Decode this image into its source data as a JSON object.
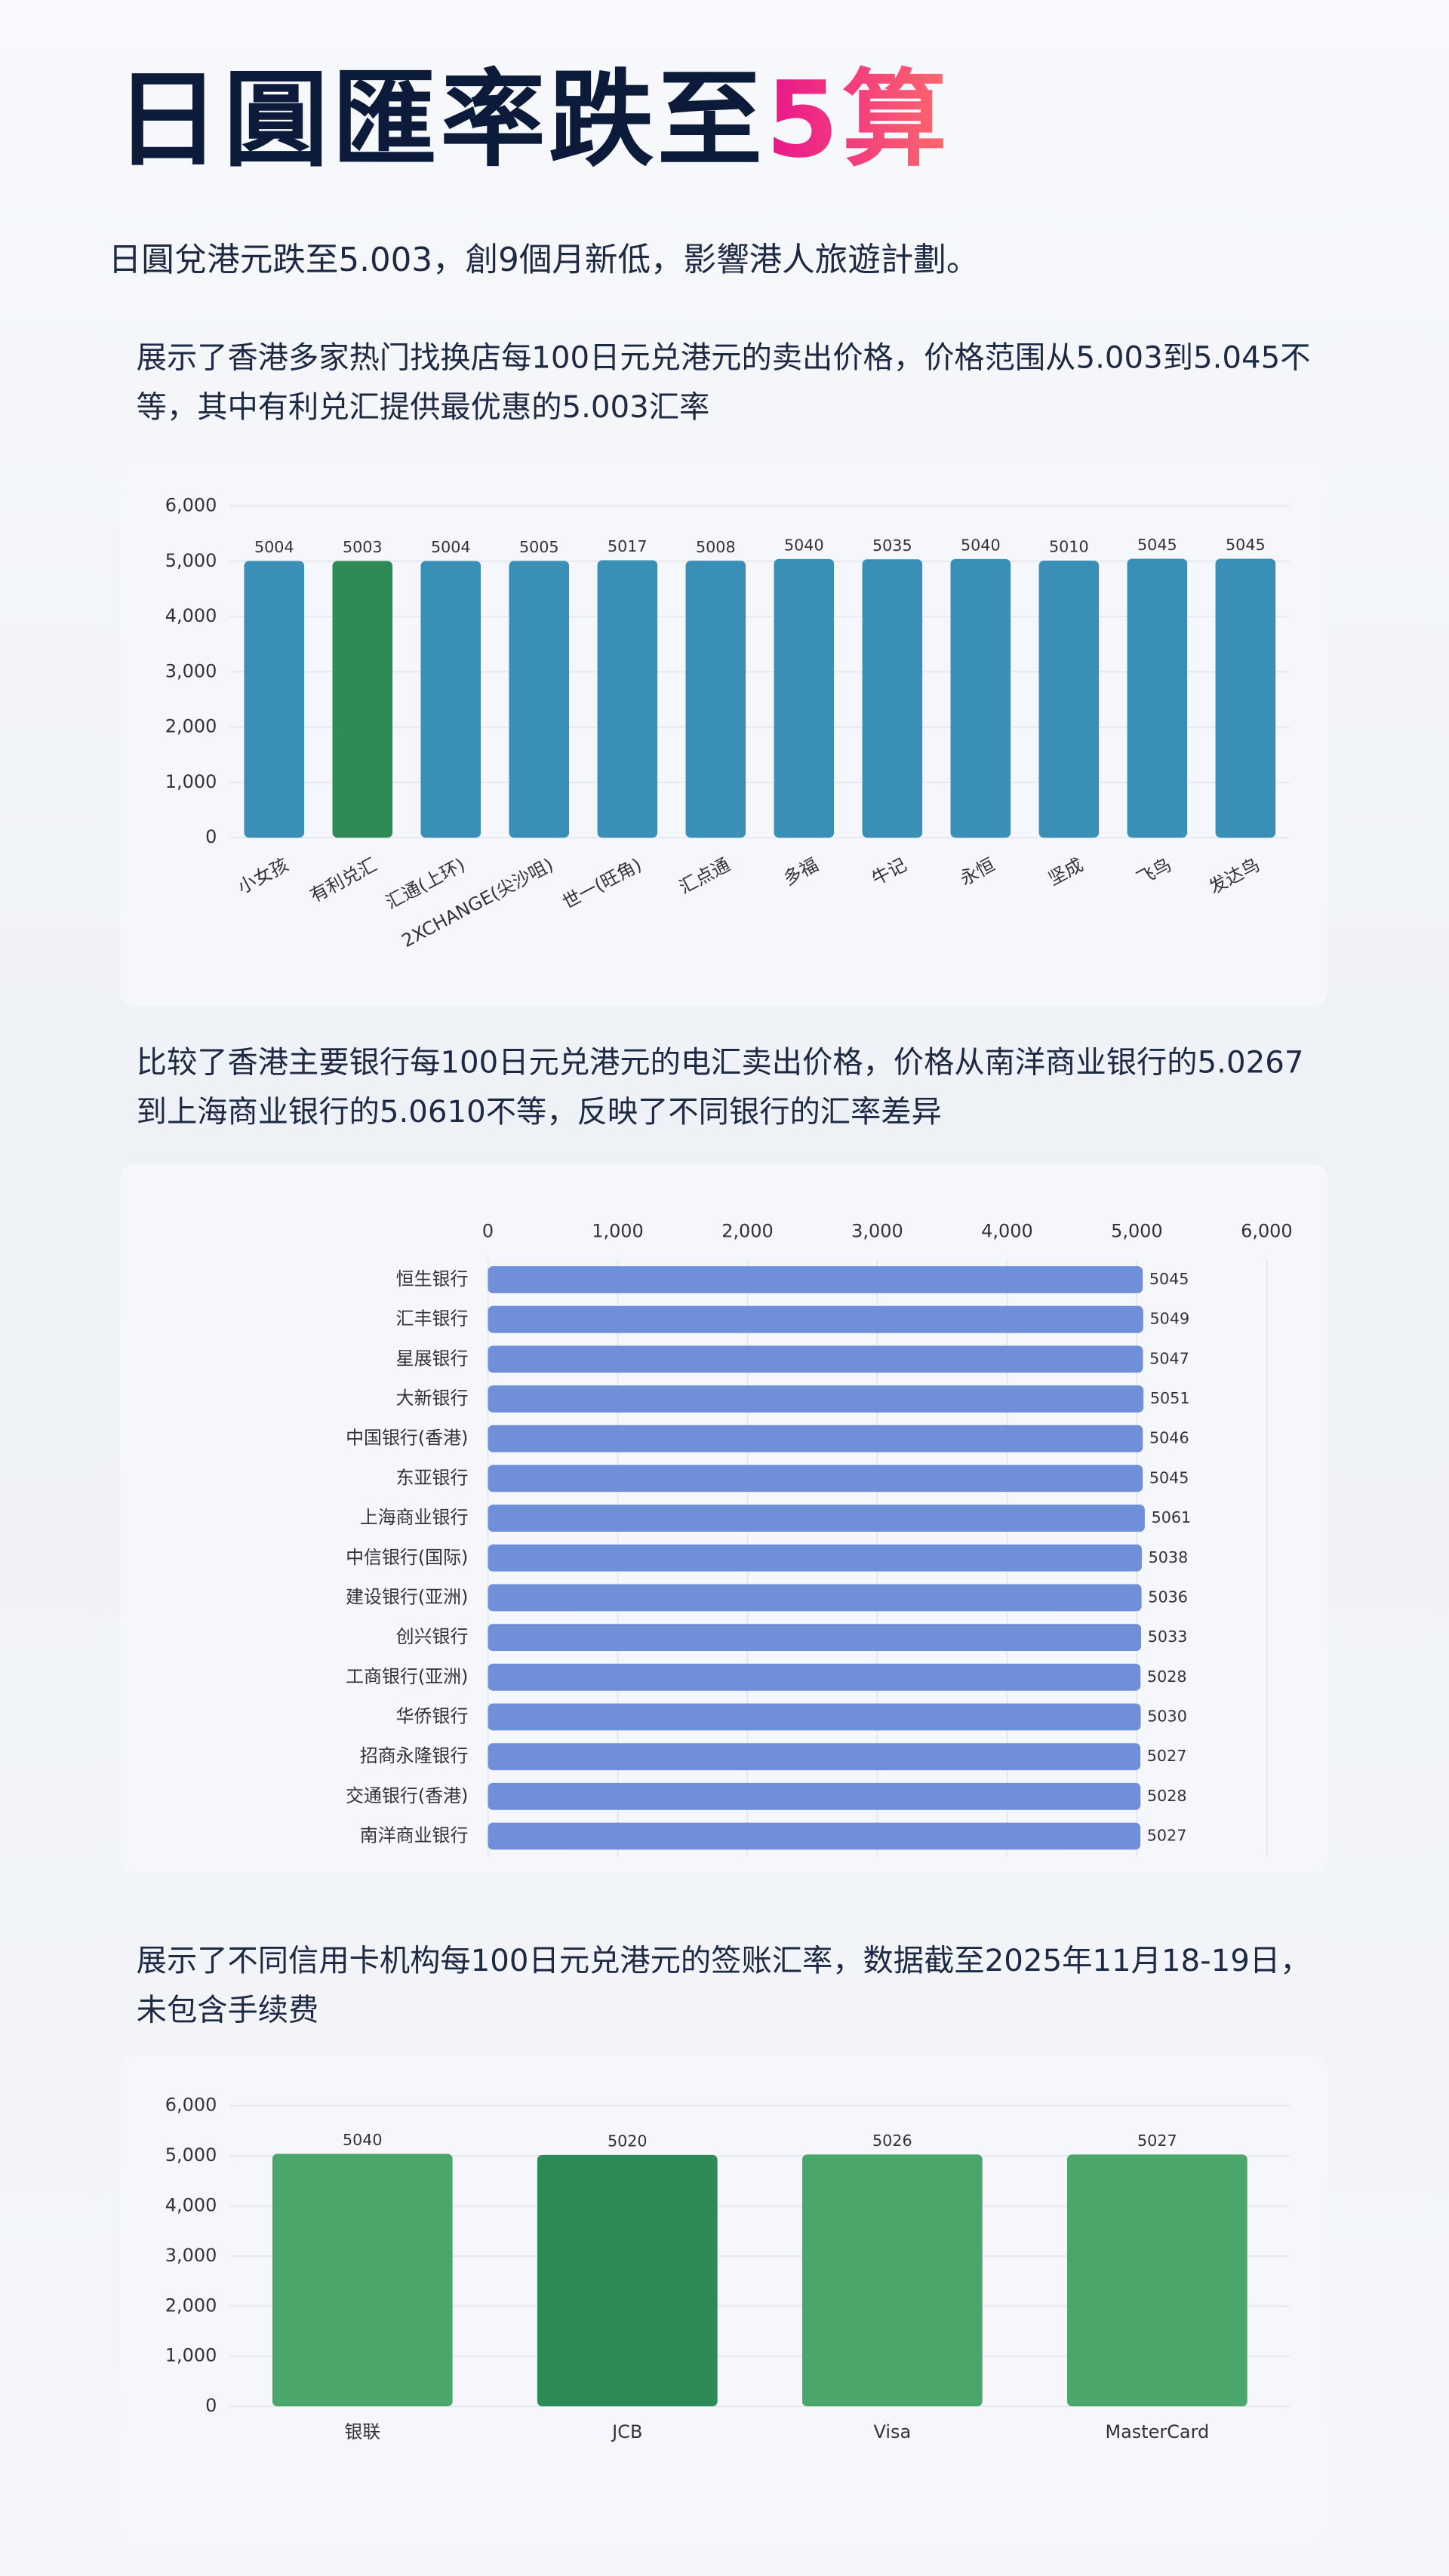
{
  "header": {
    "title_main": "日圓匯率跌至",
    "title_highlight": "5算",
    "subtitle": "日圓兌港元跌至5.003，創9個月新低，影響港人旅遊計劃。"
  },
  "descriptions": [
    "展示了香港多家热门找换店每100日元兑港元的卖出价格，价格范围从5.003到5.045不等，其中有利兑汇提供最优惠的5.003汇率",
    "比较了香港主要银行每100日元兑港元的电汇卖出价格，价格从南洋商业银行的5.0267到上海商业银行的5.0610不等，反映了不同银行的汇率差异",
    "展示了不同信用卡机构每100日元兑港元的签账汇率，数据截至2025年11月18-19日，未包含手续费"
  ],
  "chart_data": [
    {
      "type": "bar",
      "categories": [
        "小女孩",
        "有利兑汇",
        "汇通(上环)",
        "2XCHANGE(尖沙咀)",
        "世一(旺角)",
        "汇点通",
        "多福",
        "牛记",
        "永恒",
        "坚成",
        "飞鸟",
        "发达鸟"
      ],
      "values": [
        5004,
        5003,
        5004,
        5005,
        5017,
        5008,
        5040,
        5035,
        5040,
        5010,
        5045,
        5045
      ],
      "colors": [
        "#3a8fb7",
        "#2e8b57",
        "#3a8fb7",
        "#3a8fb7",
        "#3a8fb7",
        "#3a8fb7",
        "#3a8fb7",
        "#3a8fb7",
        "#3a8fb7",
        "#3a8fb7",
        "#3a8fb7",
        "#3a8fb7"
      ],
      "ylim": [
        0,
        6000
      ],
      "yticks": [
        0,
        {
          "value": 1000,
          "label": "1,000"
        },
        {
          "value": 2000,
          "label": "2,000"
        },
        {
          "value": 3000,
          "label": "3,000"
        },
        {
          "value": 4000,
          "label": "4,000"
        },
        {
          "value": 5000,
          "label": "5,000"
        },
        {
          "value": 6000,
          "label": "6,000"
        }
      ],
      "grid": true
    },
    {
      "type": "barh",
      "categories": [
        "恒生银行",
        "汇丰银行",
        "星展银行",
        "大新银行",
        "中国银行(香港)",
        "东亚银行",
        "上海商业银行",
        "中信银行(国际)",
        "建设银行(亚洲)",
        "创兴银行",
        "工商银行(亚洲)",
        "华侨银行",
        "招商永隆银行",
        "交通银行(香港)",
        "南洋商业银行"
      ],
      "values": [
        5045,
        5049,
        5047,
        5051,
        5046,
        5045,
        5061,
        5038,
        5036,
        5033,
        5028,
        5030,
        5027,
        5028,
        5027
      ],
      "color": "#6f8fd8",
      "xlim": [
        0,
        6000
      ],
      "xticks": [
        0,
        {
          "value": 1000,
          "label": "1,000"
        },
        {
          "value": 2000,
          "label": "2,000"
        },
        {
          "value": 3000,
          "label": "3,000"
        },
        {
          "value": 4000,
          "label": "4,000"
        },
        {
          "value": 5000,
          "label": "5,000"
        },
        {
          "value": 6000,
          "label": "6,000"
        }
      ],
      "grid": true
    },
    {
      "type": "bar",
      "categories": [
        "银联",
        "JCB",
        "Visa",
        "MasterCard"
      ],
      "values": [
        5040,
        5020,
        5026,
        5027
      ],
      "colors": [
        "#4aa66b",
        "#2e8b57",
        "#4aa66b",
        "#4aa66b"
      ],
      "ylim": [
        0,
        6000
      ],
      "yticks": [
        0,
        {
          "value": 1000,
          "label": "1,000"
        },
        {
          "value": 2000,
          "label": "2,000"
        },
        {
          "value": 3000,
          "label": "3,000"
        },
        {
          "value": 4000,
          "label": "4,000"
        },
        {
          "value": 5000,
          "label": "5,000"
        },
        {
          "value": 6000,
          "label": "6,000"
        }
      ],
      "grid": true
    }
  ]
}
